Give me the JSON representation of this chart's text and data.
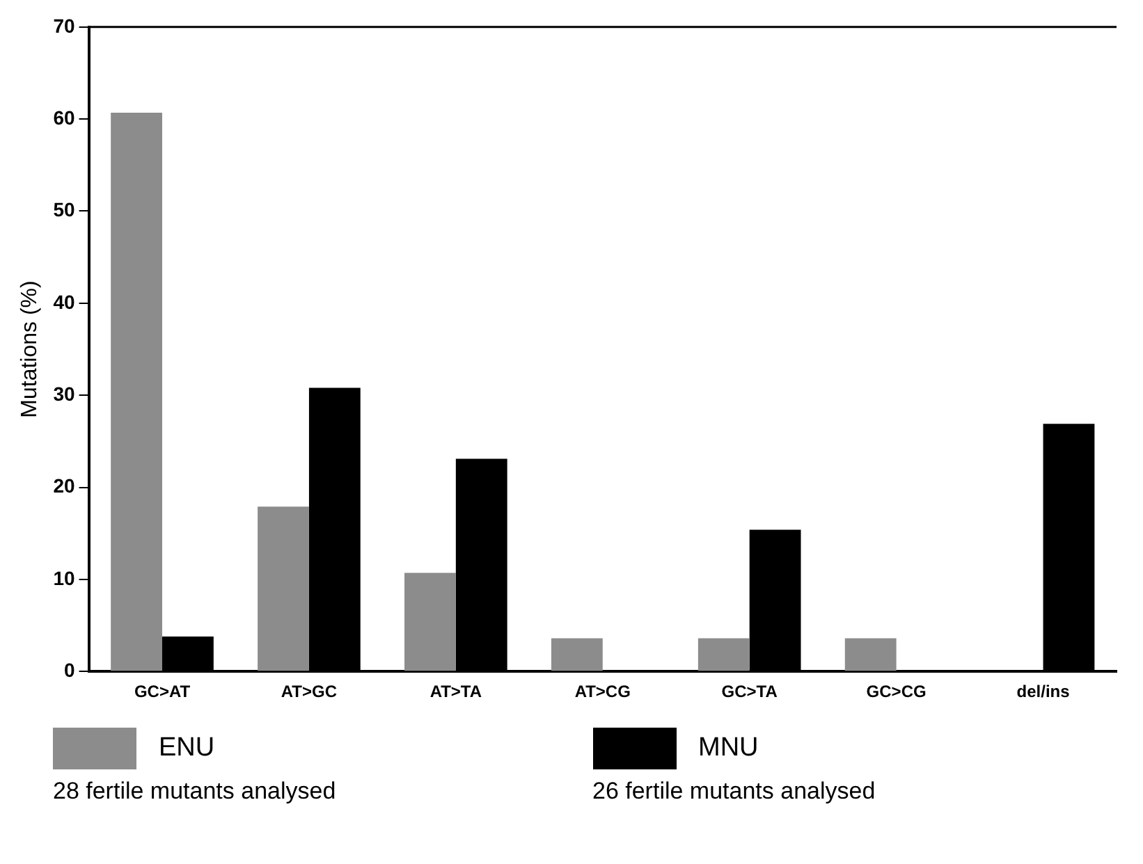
{
  "chart_data": {
    "type": "bar",
    "ylabel": "Mutations (%)",
    "categories": [
      "GC>AT",
      "AT>GC",
      "AT>TA",
      "AT>CG",
      "GC>TA",
      "GC>CG",
      "del/ins"
    ],
    "series": [
      {
        "name": "ENU",
        "color": "#8c8c8c",
        "values": [
          60.7,
          17.9,
          10.7,
          3.6,
          3.6,
          3.6,
          0
        ]
      },
      {
        "name": "MNU",
        "color": "#000000",
        "values": [
          3.8,
          30.8,
          23.1,
          0,
          15.4,
          0,
          26.9
        ]
      }
    ],
    "ylim": [
      0,
      70
    ],
    "yticks": [
      0,
      10,
      20,
      30,
      40,
      50,
      60,
      70
    ],
    "grid": false,
    "legend": "bottom",
    "annotations": [
      "28 fertile mutants analysed",
      "26 fertile mutants analysed"
    ]
  }
}
